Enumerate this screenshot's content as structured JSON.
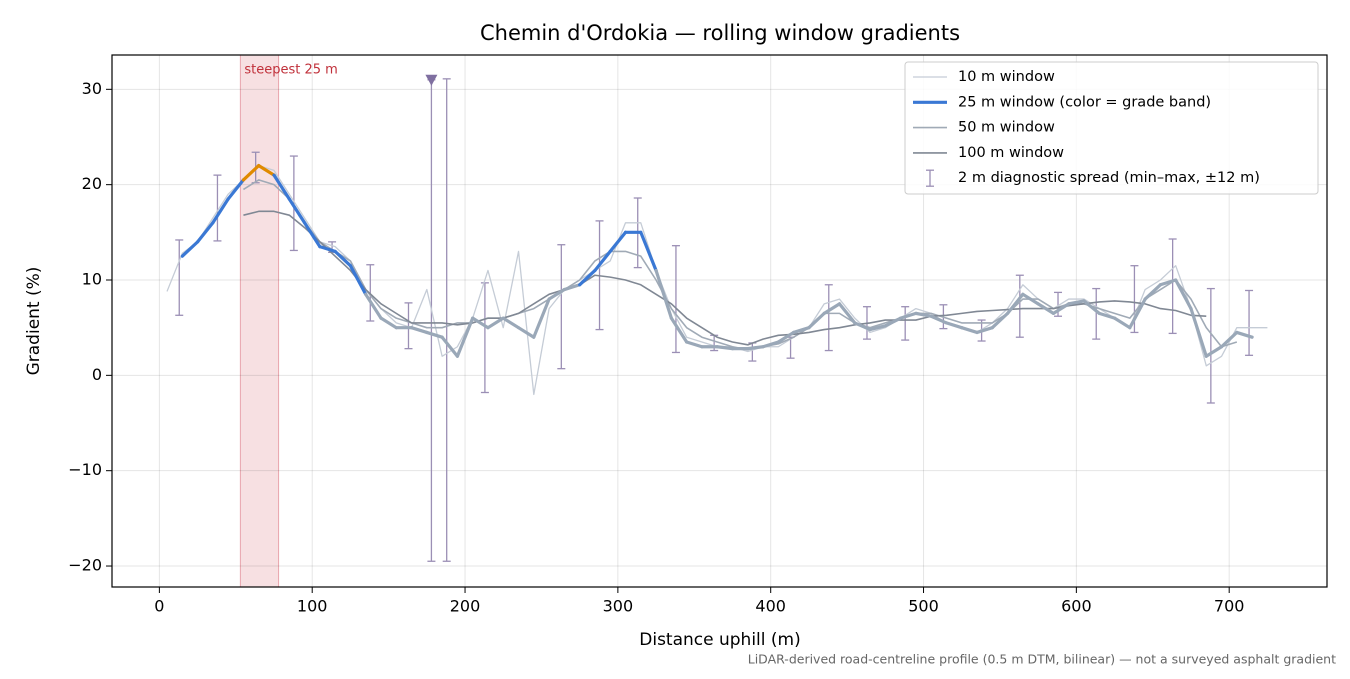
{
  "chart_data": {
    "type": "line",
    "title": "Chemin d'Ordokia — rolling window gradients",
    "xlabel": "Distance uphill (m)",
    "ylabel": "Gradient (%)",
    "footnote": "LiDAR-derived road-centreline profile (0.5 m DTM, bilinear) — not a surveyed asphalt gradient",
    "xlim": [
      -31,
      764
    ],
    "ylim": [
      -22.2,
      33.6
    ],
    "xticks": [
      0,
      100,
      200,
      300,
      400,
      500,
      600,
      700
    ],
    "yticks": [
      {
        "value": -20,
        "label": "−20"
      },
      {
        "value": -10,
        "label": "−10"
      },
      0,
      10,
      20,
      30
    ],
    "grid": true,
    "legend": "upper right",
    "x": [
      5,
      15,
      25,
      35,
      45,
      55,
      65,
      75,
      85,
      95,
      105,
      115,
      125,
      135,
      145,
      155,
      165,
      175,
      185,
      195,
      205,
      215,
      225,
      235,
      245,
      255,
      265,
      275,
      285,
      295,
      305,
      315,
      325,
      335,
      345,
      355,
      365,
      375,
      385,
      395,
      405,
      415,
      425,
      435,
      445,
      455,
      465,
      475,
      485,
      495,
      505,
      515,
      525,
      535,
      545,
      555,
      565,
      575,
      585,
      595,
      605,
      615,
      625,
      635,
      645,
      655,
      665,
      675,
      685,
      695,
      705,
      715,
      725
    ],
    "series": [
      {
        "name": "10 m window",
        "color": "#c5ccd6",
        "width": 1.3,
        "values": [
          8.8,
          12.8,
          14,
          16.5,
          19,
          20.5,
          22,
          21.5,
          19,
          16.5,
          14,
          13.5,
          12,
          9,
          7,
          5.5,
          5,
          9,
          2,
          3,
          6,
          11,
          5,
          13,
          -2,
          7,
          9,
          10,
          11,
          12,
          16,
          16,
          11,
          7,
          4,
          3.5,
          3,
          3,
          2.5,
          3,
          3,
          4,
          5,
          7.5,
          8,
          6,
          4.5,
          5,
          6,
          7,
          6.5,
          5.5,
          5,
          4.5,
          5.5,
          7,
          9.5,
          8,
          7,
          8,
          8,
          7,
          6,
          5,
          9,
          10,
          11.5,
          7,
          1,
          2,
          5,
          5,
          5
        ]
      },
      {
        "name": "25 m window (color = grade band)",
        "color": "#3a78d4",
        "width": 3.2,
        "base_color": "#9aa8b8",
        "grade_bands": [
          {
            "min": 10,
            "color": "#3a78d4"
          },
          {
            "min": 20,
            "color": "#e08a00"
          }
        ],
        "values": [
          null,
          12.5,
          14,
          16,
          18.5,
          20.5,
          22,
          21,
          18.5,
          16,
          13.5,
          13,
          11.5,
          8.5,
          6,
          5,
          5,
          4.5,
          4,
          2,
          6,
          5,
          6,
          5,
          4,
          8,
          9,
          9.5,
          11,
          13,
          15,
          15,
          11,
          6,
          3.5,
          3,
          3,
          2.8,
          2.8,
          3,
          3.5,
          4.5,
          5,
          6.5,
          7.5,
          5.5,
          4.8,
          5.2,
          6,
          6.5,
          6.2,
          5.5,
          5,
          4.5,
          5,
          6.5,
          8.5,
          7.5,
          6.5,
          7.5,
          7.8,
          6.5,
          6,
          5,
          8,
          9.5,
          10,
          7,
          2,
          3,
          4.5,
          4,
          null
        ]
      },
      {
        "name": "50 m window",
        "color": "#a0aab6",
        "width": 1.6,
        "values": [
          null,
          null,
          null,
          null,
          null,
          19.5,
          20.5,
          20,
          18.5,
          16,
          14,
          13,
          12,
          9,
          7,
          6,
          5.5,
          5,
          5,
          5.5,
          5.5,
          6,
          6,
          6.5,
          7,
          8,
          9,
          10,
          12,
          13,
          13,
          12.5,
          10,
          7,
          5,
          4,
          3.5,
          3,
          2.7,
          3,
          3.3,
          4,
          5,
          6.5,
          6.5,
          5.5,
          5,
          5.5,
          6,
          6.5,
          6.5,
          6,
          5.5,
          5.5,
          5.5,
          6.5,
          8,
          8,
          7,
          7.5,
          7.5,
          7,
          6.5,
          6,
          8,
          9,
          10,
          8,
          5,
          3,
          3.5,
          null,
          null
        ]
      },
      {
        "name": "100 m window",
        "color": "#808894",
        "width": 1.6,
        "values": [
          null,
          null,
          null,
          null,
          null,
          16.8,
          17.2,
          17.2,
          16.8,
          15.5,
          14,
          12.5,
          11,
          9,
          7.5,
          6.5,
          5.5,
          5.5,
          5.5,
          5.3,
          5.5,
          6,
          6,
          6.5,
          7.5,
          8.5,
          9,
          9.5,
          10.5,
          10.3,
          10,
          9.5,
          8.5,
          7.5,
          6,
          5,
          4,
          3.5,
          3.2,
          3.8,
          4.2,
          4.3,
          4.5,
          4.8,
          5,
          5.3,
          5.5,
          5.8,
          5.8,
          5.8,
          6.2,
          6.3,
          6.5,
          6.7,
          6.8,
          6.9,
          7,
          7,
          7,
          7.3,
          7.5,
          7.7,
          7.8,
          7.7,
          7.5,
          7,
          6.8,
          6.3,
          6.2,
          null,
          null,
          null,
          null
        ]
      }
    ],
    "errorbars": {
      "name": "2 m diagnostic spread (min–max, ±12 m)",
      "color": "#9b8fb5",
      "x": [
        13,
        38,
        63,
        88,
        113,
        138,
        163,
        178,
        188,
        213,
        263,
        288,
        313,
        338,
        363,
        388,
        413,
        438,
        463,
        488,
        513,
        538,
        563,
        588,
        613,
        638,
        663,
        688,
        713
      ],
      "low": [
        6.3,
        14.1,
        20.2,
        13.1,
        12.9,
        5.7,
        2.8,
        -19.5,
        -19.5,
        -1.8,
        0.7,
        4.8,
        11.3,
        2.4,
        2.6,
        1.5,
        1.8,
        2.6,
        3.8,
        3.7,
        4.9,
        3.6,
        4,
        6.2,
        3.8,
        4.5,
        4.4,
        -2.9,
        2.1
      ],
      "high": [
        14.2,
        21,
        23.4,
        23,
        14,
        11.6,
        7.6,
        31,
        31.1,
        9.7,
        13.7,
        16.2,
        18.6,
        13.6,
        4.2,
        3.4,
        4,
        9.5,
        7.2,
        7.2,
        7.4,
        5.8,
        10.5,
        8.7,
        9.1,
        11.5,
        14.3,
        9.1,
        8.9
      ]
    },
    "marker": {
      "x": 178,
      "y": 31,
      "color": "#7f6fa0"
    },
    "highlight": {
      "x": [
        53,
        78
      ],
      "label": "steepest 25 m",
      "color": "#e8a5ad",
      "label_color": "#c0303a"
    }
  }
}
